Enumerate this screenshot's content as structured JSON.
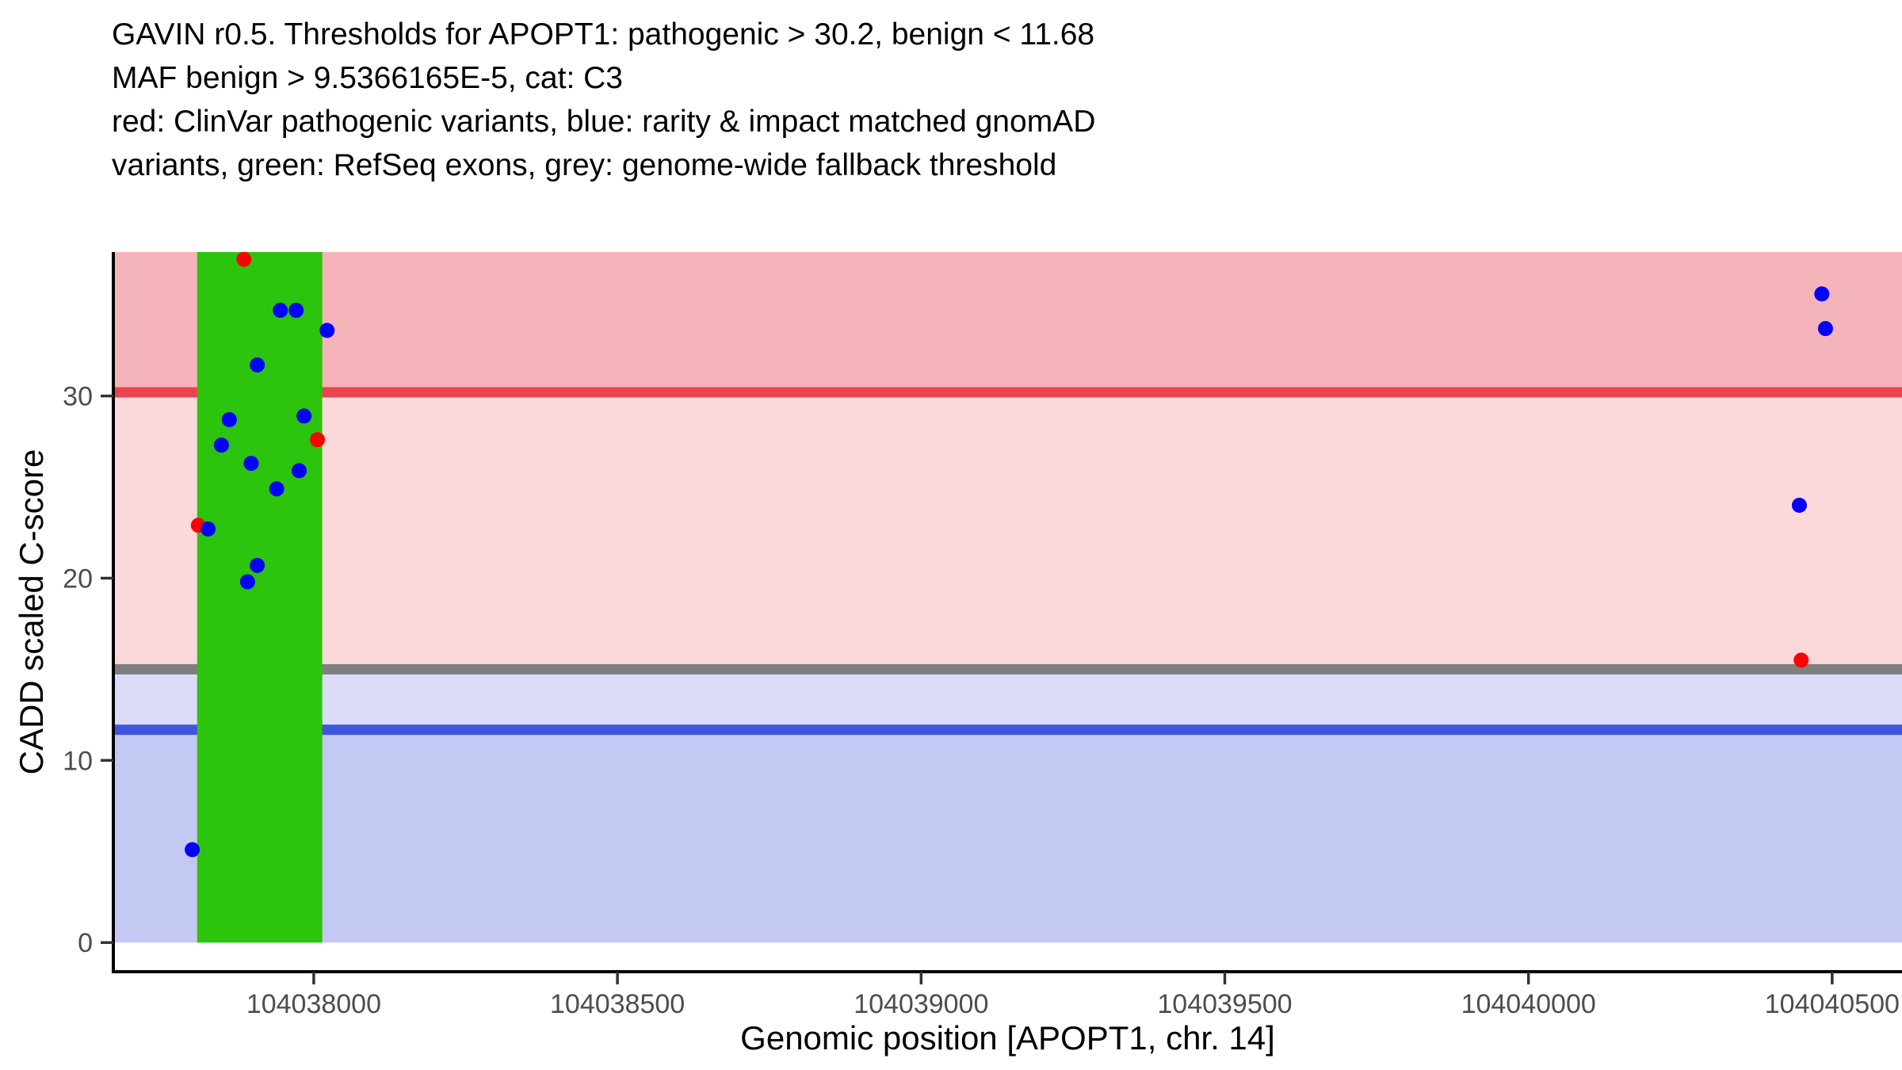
{
  "chart_data": {
    "type": "scatter",
    "title_lines": [
      "GAVIN r0.5. Thresholds for APOPT1: pathogenic > 30.2, benign < 11.68",
      "MAF benign > 9.5366165E-5, cat: C3",
      "red: ClinVar pathogenic variants, blue: rarity & impact matched gnomAD",
      "variants, green: RefSeq exons, grey: genome-wide fallback threshold"
    ],
    "xlabel": "Genomic position [APOPT1, chr. 14]",
    "ylabel": "CADD scaled C-score",
    "xlim": [
      104037670,
      104040615
    ],
    "ylim": [
      -1.6,
      37.9
    ],
    "x_ticks": [
      104038000,
      104038500,
      104039000,
      104039500,
      104040000,
      104040500
    ],
    "x_tick_labels": [
      "104038000",
      "104038500",
      "104039000",
      "104039500",
      "104040000",
      "104040500"
    ],
    "y_ticks": [
      0,
      10,
      20,
      30
    ],
    "y_tick_labels": [
      "0",
      "10",
      "20",
      "30"
    ],
    "grid": "off",
    "legend": "none",
    "thresholds": {
      "pathogenic_gt": 30.2,
      "benign_lt": 11.68,
      "genome_wide_fallback": 15,
      "maf_benign_gt": "9.5366165E-5",
      "category": "C3"
    },
    "bands": [
      {
        "name": "pathogenic-region-band",
        "from": 30.2,
        "to": 37.9,
        "color": "#f5b4ba"
      },
      {
        "name": "vus-upper-region-band",
        "from": 15,
        "to": 30.2,
        "color": "#fbd8da"
      },
      {
        "name": "vus-lower-region-band",
        "from": 11.68,
        "to": 15,
        "color": "#dbdcf8"
      },
      {
        "name": "benign-region-band",
        "from": 0,
        "to": 11.68,
        "color": "#c4c9f3"
      }
    ],
    "threshold_lines": [
      {
        "name": "pathogenic-threshold-line",
        "y": 30.2,
        "color": "#eb4450"
      },
      {
        "name": "fallback-threshold-line",
        "y": 15,
        "color": "#7f7f7f"
      },
      {
        "name": "benign-threshold-line",
        "y": 11.68,
        "color": "#3e56dd"
      }
    ],
    "exons": [
      {
        "name": "refseq-exon-rect",
        "x_from": 104037808,
        "x_to": 104038014,
        "y_from": 0,
        "y_to": 37.9,
        "color": "#2cc40c"
      }
    ],
    "series": [
      {
        "name": "ClinVar pathogenic variants",
        "point_name": "clinvar-pathogenic-point",
        "color": "#ff0000",
        "points": [
          [
            104037885,
            37.5
          ],
          [
            104038006,
            27.6
          ],
          [
            104037810,
            22.9
          ],
          [
            104040449,
            15.5
          ]
        ]
      },
      {
        "name": "rarity & impact matched gnomAD variants",
        "point_name": "gnomad-matched-point",
        "color": "#0000ff",
        "points": [
          [
            104037945,
            34.7
          ],
          [
            104037971,
            34.7
          ],
          [
            104038022,
            33.6
          ],
          [
            104037907,
            31.7
          ],
          [
            104037861,
            28.7
          ],
          [
            104037984,
            28.9
          ],
          [
            104037848,
            27.3
          ],
          [
            104037897,
            26.3
          ],
          [
            104037976,
            25.9
          ],
          [
            104037939,
            24.9
          ],
          [
            104037826,
            22.7
          ],
          [
            104037907,
            20.7
          ],
          [
            104037891,
            19.8
          ],
          [
            104037800,
            5.1
          ],
          [
            104040483,
            35.6
          ],
          [
            104040489,
            33.7
          ],
          [
            104040446,
            24.0
          ]
        ]
      }
    ],
    "colors": {
      "background": "#ffffff",
      "axis_line": "#000000",
      "tick_mark": "#333333",
      "tick_label": "#4d4d4d"
    }
  }
}
